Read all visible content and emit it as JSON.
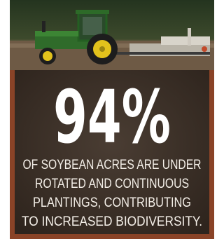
{
  "stat": "94%",
  "caption_lines": [
    "OF SOYBEAN ACRES ARE UNDER",
    "ROTATED AND CONTINUOUS",
    "PLANTINGS, CONTRIBUTING",
    "TO INCREASED BIODIVERSITY."
  ]
}
